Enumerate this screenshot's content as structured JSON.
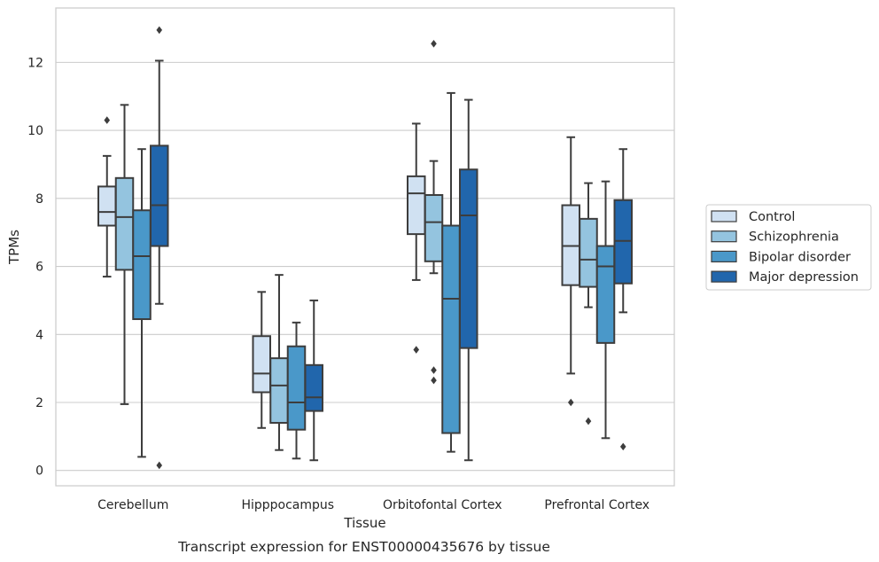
{
  "caption": "Transcript expression for ENST00000435676 by tissue",
  "chart_data": {
    "type": "box",
    "title": "",
    "xlabel": "Tissue",
    "ylabel": "TPMs",
    "ylim": [
      -0.45,
      13.6
    ],
    "yticks": [
      0,
      2,
      4,
      6,
      8,
      10,
      12
    ],
    "grid": "horizontal",
    "legend_position": "right",
    "categories": [
      "Cerebellum",
      "Hipppocampus",
      "Orbitofontal Cortex",
      "Prefrontal Cortex"
    ],
    "series": [
      {
        "name": "Control",
        "color": "#d0e1f2",
        "boxes": [
          {
            "whisker_low": 5.7,
            "q1": 7.2,
            "median": 7.6,
            "q3": 8.35,
            "whisker_high": 9.25,
            "outliers": [
              10.3
            ]
          },
          {
            "whisker_low": 1.25,
            "q1": 2.3,
            "median": 2.85,
            "q3": 3.95,
            "whisker_high": 5.25,
            "outliers": []
          },
          {
            "whisker_low": 5.6,
            "q1": 6.95,
            "median": 8.15,
            "q3": 8.65,
            "whisker_high": 10.2,
            "outliers": [
              3.55
            ]
          },
          {
            "whisker_low": 2.85,
            "q1": 5.45,
            "median": 6.6,
            "q3": 7.8,
            "whisker_high": 9.8,
            "outliers": [
              2.0
            ]
          }
        ]
      },
      {
        "name": "Schizophrenia",
        "color": "#94c4df",
        "boxes": [
          {
            "whisker_low": 1.95,
            "q1": 5.9,
            "median": 7.45,
            "q3": 8.6,
            "whisker_high": 10.75,
            "outliers": []
          },
          {
            "whisker_low": 0.6,
            "q1": 1.4,
            "median": 2.5,
            "q3": 3.3,
            "whisker_high": 5.75,
            "outliers": []
          },
          {
            "whisker_low": 5.8,
            "q1": 6.15,
            "median": 7.3,
            "q3": 8.1,
            "whisker_high": 9.1,
            "outliers": [
              12.55,
              2.95,
              2.65
            ]
          },
          {
            "whisker_low": 4.8,
            "q1": 5.4,
            "median": 6.2,
            "q3": 7.4,
            "whisker_high": 8.45,
            "outliers": [
              1.45
            ]
          }
        ]
      },
      {
        "name": "Bipolar disorder",
        "color": "#4a98c9",
        "boxes": [
          {
            "whisker_low": 0.4,
            "q1": 4.45,
            "median": 6.3,
            "q3": 7.65,
            "whisker_high": 9.45,
            "outliers": []
          },
          {
            "whisker_low": 0.35,
            "q1": 1.2,
            "median": 2.0,
            "q3": 3.65,
            "whisker_high": 4.35,
            "outliers": []
          },
          {
            "whisker_low": 0.55,
            "q1": 1.1,
            "median": 5.05,
            "q3": 7.2,
            "whisker_high": 11.1,
            "outliers": []
          },
          {
            "whisker_low": 0.95,
            "q1": 3.75,
            "median": 6.0,
            "q3": 6.6,
            "whisker_high": 8.5,
            "outliers": []
          }
        ]
      },
      {
        "name": "Major depression",
        "color": "#2166ac",
        "boxes": [
          {
            "whisker_low": 4.9,
            "q1": 6.6,
            "median": 7.8,
            "q3": 9.55,
            "whisker_high": 12.05,
            "outliers": [
              12.95,
              0.15
            ]
          },
          {
            "whisker_low": 0.3,
            "q1": 1.75,
            "median": 2.15,
            "q3": 3.1,
            "whisker_high": 5.0,
            "outliers": []
          },
          {
            "whisker_low": 0.3,
            "q1": 3.6,
            "median": 7.5,
            "q3": 8.85,
            "whisker_high": 10.9,
            "outliers": []
          },
          {
            "whisker_low": 4.65,
            "q1": 5.5,
            "median": 6.75,
            "q3": 7.95,
            "whisker_high": 9.45,
            "outliers": [
              0.7
            ]
          }
        ]
      }
    ]
  }
}
